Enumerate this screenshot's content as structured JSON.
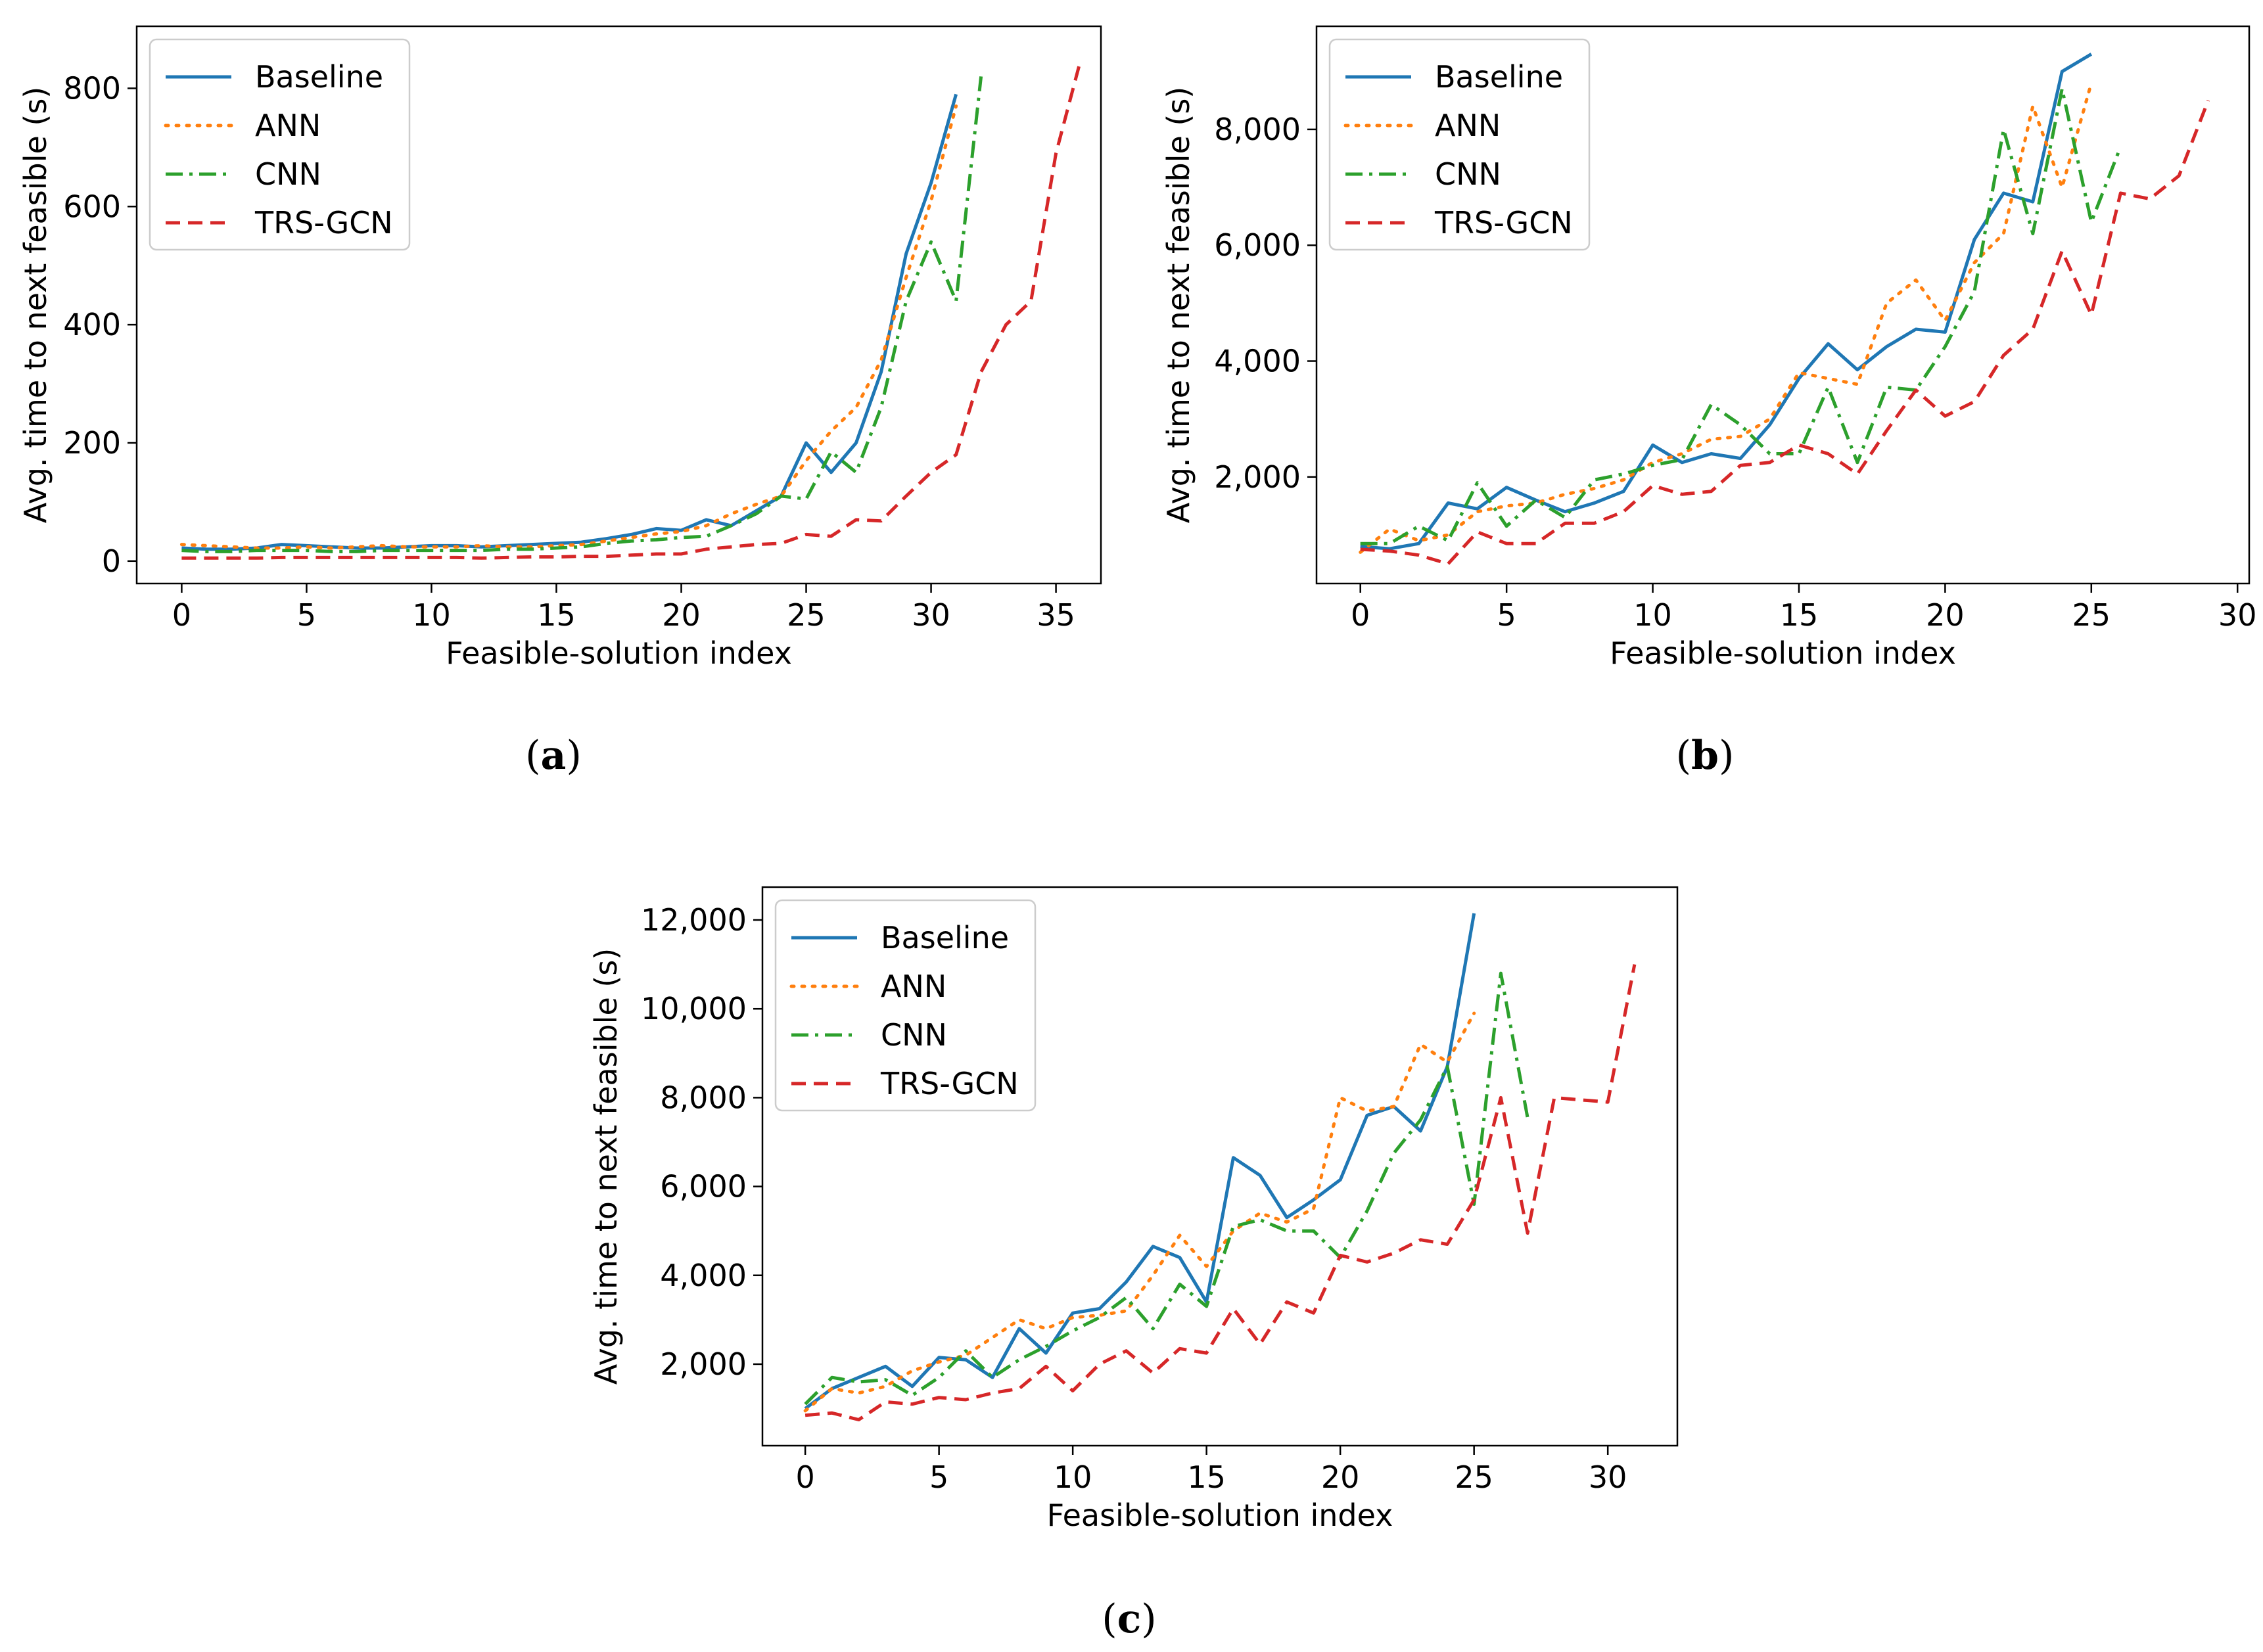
{
  "colors": {
    "baseline": "#1f77b4",
    "ann": "#ff7f0e",
    "cnn": "#2ca02c",
    "trs_gcn": "#d62728"
  },
  "chart_data": [
    {
      "panel": "a",
      "type": "line",
      "caption": {
        "open": "(",
        "letter": "a",
        "close": ")"
      },
      "xlabel": "Feasible-solution index",
      "ylabel": "Avg. time to next feasible (s)",
      "xlim": [
        -1.8,
        36.8
      ],
      "ylim": [
        -38,
        905
      ],
      "xticks": [
        0,
        5,
        10,
        15,
        20,
        25,
        30,
        35
      ],
      "xtick_labels": [
        "0",
        "5",
        "10",
        "15",
        "20",
        "25",
        "30",
        "35"
      ],
      "yticks": [
        0,
        200,
        400,
        600,
        800
      ],
      "ytick_labels": [
        "0",
        "200",
        "400",
        "600",
        "800"
      ],
      "legend_position": "upper-left",
      "series": [
        {
          "name": "Baseline",
          "style": "solid",
          "color_key": "baseline",
          "values": [
            22,
            20,
            20,
            22,
            28,
            26,
            24,
            22,
            22,
            24,
            26,
            26,
            24,
            26,
            28,
            30,
            32,
            38,
            45,
            55,
            52,
            70,
            60,
            85,
            110,
            200,
            150,
            200,
            320,
            520,
            640,
            790
          ]
        },
        {
          "name": "ANN",
          "style": "dotted",
          "color_key": "ann",
          "values": [
            28,
            26,
            24,
            22,
            22,
            24,
            22,
            24,
            26,
            24,
            24,
            24,
            26,
            24,
            24,
            26,
            28,
            34,
            40,
            46,
            50,
            60,
            80,
            96,
            110,
            170,
            220,
            260,
            340,
            480,
            610,
            770
          ]
        },
        {
          "name": "CNN",
          "style": "dashdot",
          "color_key": "cnn",
          "values": [
            18,
            16,
            16,
            18,
            18,
            18,
            16,
            16,
            18,
            18,
            18,
            18,
            18,
            20,
            20,
            22,
            24,
            30,
            34,
            36,
            40,
            42,
            60,
            80,
            110,
            105,
            185,
            150,
            260,
            440,
            540,
            440,
            820
          ]
        },
        {
          "name": "TRS-GCN",
          "style": "dashed",
          "color_key": "trs_gcn",
          "values": [
            5,
            5,
            5,
            5,
            6,
            6,
            6,
            6,
            6,
            6,
            6,
            6,
            5,
            6,
            7,
            7,
            8,
            8,
            10,
            12,
            12,
            20,
            24,
            28,
            30,
            45,
            42,
            70,
            68,
            110,
            150,
            180,
            320,
            400,
            440,
            690,
            850
          ]
        }
      ]
    },
    {
      "panel": "b",
      "type": "line",
      "caption": {
        "open": "(",
        "letter": "b",
        "close": ")"
      },
      "xlabel": "Feasible-solution index",
      "ylabel": "Avg. time to next feasible (s)",
      "xlim": [
        -1.5,
        30.4
      ],
      "ylim": [
        160,
        9780
      ],
      "xticks": [
        0,
        5,
        10,
        15,
        20,
        25,
        30
      ],
      "xtick_labels": [
        "0",
        "5",
        "10",
        "15",
        "20",
        "25",
        "30"
      ],
      "yticks": [
        2000,
        4000,
        6000,
        8000
      ],
      "ytick_labels": [
        "2,000",
        "4,000",
        "6,000",
        "8,000"
      ],
      "legend_position": "upper-left",
      "series": [
        {
          "name": "Baseline",
          "style": "solid",
          "color_key": "baseline",
          "values": [
            800,
            760,
            850,
            1550,
            1450,
            1820,
            1600,
            1400,
            1550,
            1750,
            2550,
            2250,
            2400,
            2320,
            2900,
            3700,
            4300,
            3850,
            4250,
            4550,
            4500,
            6100,
            6900,
            6750,
            9000,
            9300
          ]
        },
        {
          "name": "ANN",
          "style": "dotted",
          "color_key": "ann",
          "values": [
            700,
            1100,
            900,
            1000,
            1400,
            1500,
            1550,
            1700,
            1800,
            1950,
            2250,
            2400,
            2650,
            2700,
            3000,
            3800,
            3700,
            3600,
            5000,
            5400,
            4700,
            5700,
            6200,
            8400,
            7000,
            8800
          ]
        },
        {
          "name": "CNN",
          "style": "dashdot",
          "color_key": "cnn",
          "values": [
            850,
            850,
            1150,
            900,
            1900,
            1150,
            1600,
            1300,
            1950,
            2050,
            2200,
            2300,
            3250,
            2900,
            2400,
            2400,
            3550,
            2250,
            3550,
            3500,
            4250,
            5200,
            8000,
            6200,
            8700,
            6400,
            7700
          ]
        },
        {
          "name": "TRS-GCN",
          "style": "dashed",
          "color_key": "trs_gcn",
          "values": [
            750,
            720,
            650,
            500,
            1050,
            850,
            850,
            1200,
            1200,
            1400,
            1850,
            1700,
            1750,
            2200,
            2250,
            2550,
            2400,
            2050,
            2800,
            3500,
            3050,
            3300,
            4100,
            4550,
            5900,
            4800,
            6900,
            6800,
            7200,
            8500
          ]
        }
      ]
    },
    {
      "panel": "c",
      "type": "line",
      "caption": {
        "open": "(",
        "letter": "c",
        "close": ")"
      },
      "xlabel": "Feasible-solution index",
      "ylabel": "Avg. time to next feasible (s)",
      "xlim": [
        -1.6,
        32.6
      ],
      "ylim": [
        165,
        12740
      ],
      "xticks": [
        0,
        5,
        10,
        15,
        20,
        25,
        30
      ],
      "xtick_labels": [
        "0",
        "5",
        "10",
        "15",
        "20",
        "25",
        "30"
      ],
      "yticks": [
        2000,
        4000,
        6000,
        8000,
        10000,
        12000
      ],
      "ytick_labels": [
        "2,000",
        "4,000",
        "6,000",
        "8,000",
        "10,000",
        "12,000"
      ],
      "legend_position": "upper-left",
      "series": [
        {
          "name": "Baseline",
          "style": "solid",
          "color_key": "baseline",
          "values": [
            1000,
            1450,
            1700,
            1950,
            1500,
            2150,
            2100,
            1700,
            2800,
            2250,
            3150,
            3250,
            3850,
            4650,
            4400,
            3400,
            6650,
            6250,
            5300,
            5700,
            6150,
            7600,
            7800,
            7250,
            8700,
            12150
          ]
        },
        {
          "name": "ANN",
          "style": "dotted",
          "color_key": "ann",
          "values": [
            950,
            1450,
            1350,
            1500,
            1850,
            2050,
            2200,
            2600,
            3000,
            2800,
            3050,
            3100,
            3200,
            4000,
            4900,
            4200,
            5000,
            5400,
            5200,
            5500,
            8000,
            7700,
            7800,
            9200,
            8800,
            9900
          ]
        },
        {
          "name": "CNN",
          "style": "dashdot",
          "color_key": "cnn",
          "values": [
            1100,
            1700,
            1600,
            1650,
            1300,
            1700,
            2300,
            1700,
            2100,
            2400,
            2750,
            3050,
            3500,
            2800,
            3800,
            3300,
            5100,
            5250,
            5000,
            5000,
            4400,
            5450,
            6750,
            7500,
            8700,
            5600,
            10800,
            7550
          ]
        },
        {
          "name": "TRS-GCN",
          "style": "dashed",
          "color_key": "trs_gcn",
          "values": [
            850,
            900,
            750,
            1150,
            1100,
            1250,
            1200,
            1350,
            1450,
            1950,
            1400,
            2000,
            2300,
            1800,
            2350,
            2250,
            3250,
            2450,
            3400,
            3150,
            4450,
            4300,
            4500,
            4800,
            4700,
            5700,
            8000,
            4950,
            8000,
            7950,
            7900,
            11000
          ]
        }
      ]
    }
  ]
}
